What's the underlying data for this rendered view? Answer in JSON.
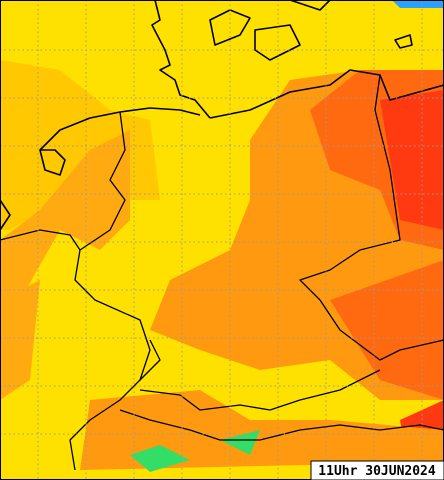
{
  "map": {
    "timestamp": "11Uhr 30JUN2024"
  }
}
